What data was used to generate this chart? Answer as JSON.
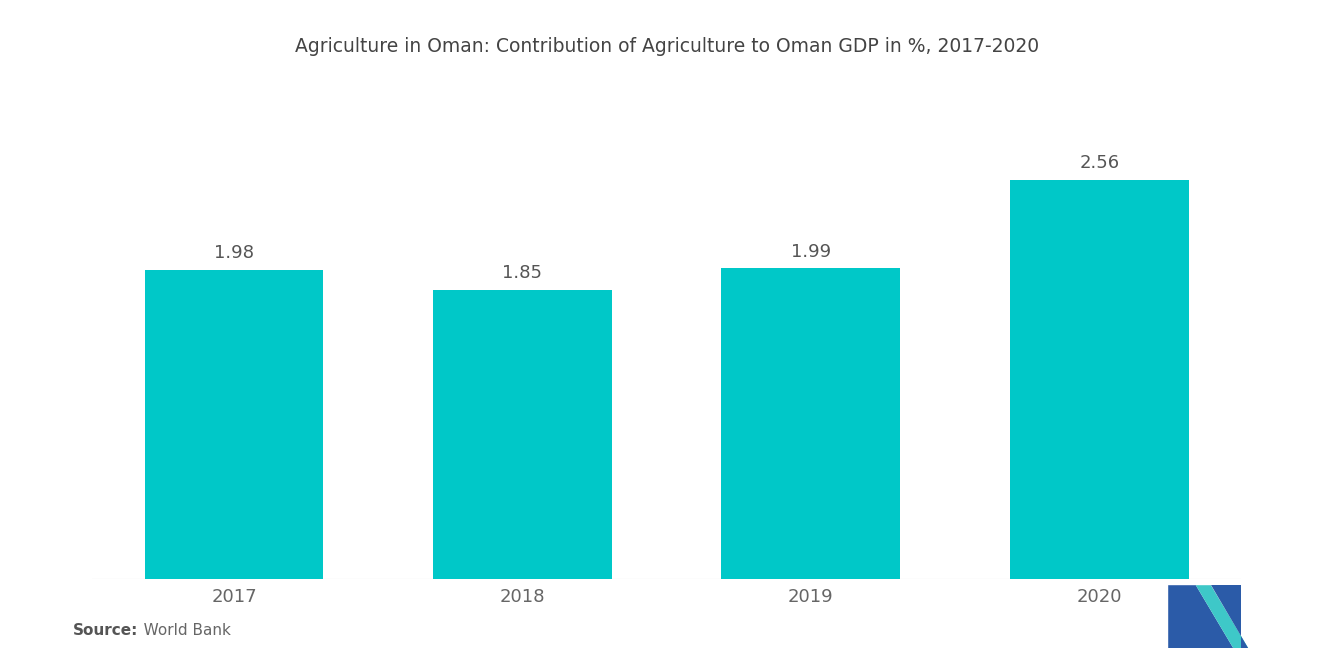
{
  "title": "Agriculture in Oman: Contribution of Agriculture to Oman GDP in %, 2017-2020",
  "categories": [
    "2017",
    "2018",
    "2019",
    "2020"
  ],
  "values": [
    1.98,
    1.85,
    1.99,
    2.56
  ],
  "bar_color": "#00C8C8",
  "background_color": "#ffffff",
  "value_labels": [
    "1.98",
    "1.85",
    "1.99",
    "2.56"
  ],
  "source_bold": "Source:",
  "source_normal": "   World Bank",
  "title_fontsize": 13.5,
  "label_fontsize": 13,
  "tick_fontsize": 13,
  "source_fontsize": 11,
  "ylim": [
    0,
    3.2
  ],
  "logo_left_color": "#2B5BA8",
  "logo_right_color": "#3EC8C8"
}
